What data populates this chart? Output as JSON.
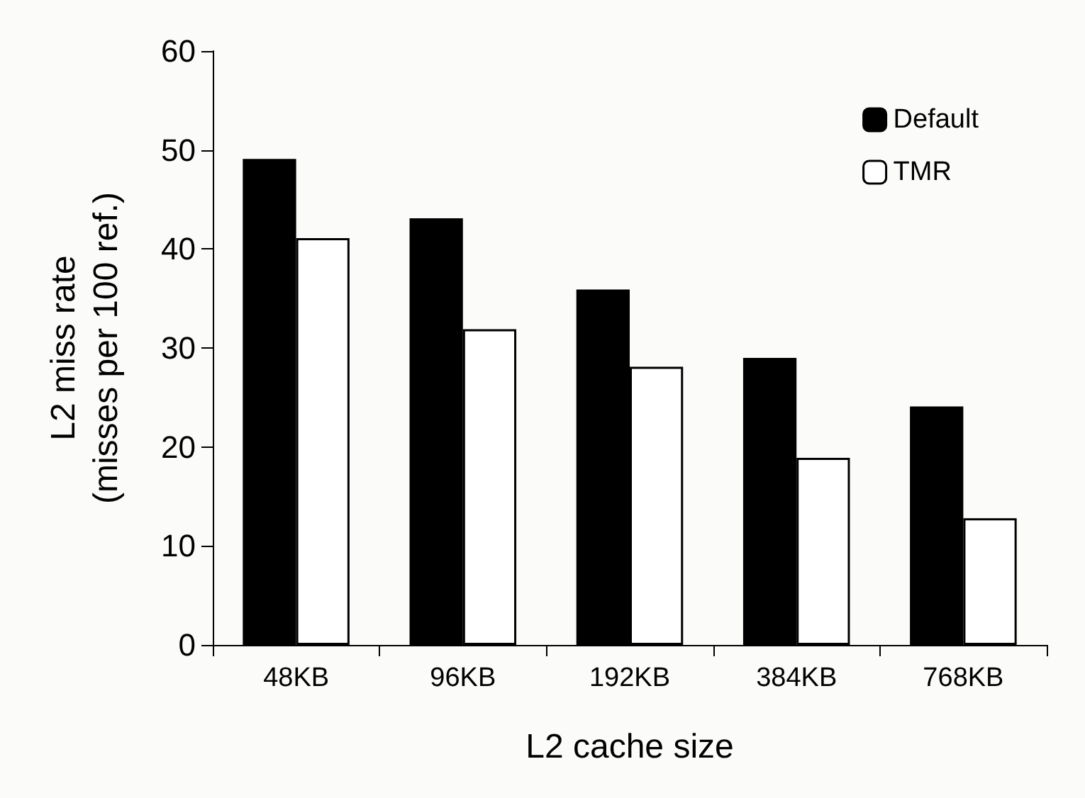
{
  "chart_data": {
    "type": "bar",
    "xlabel": "L2 cache size",
    "ylabel": "L2 miss rate\n(misses per 100 ref.)",
    "categories": [
      "48KB",
      "96KB",
      "192KB",
      "384KB",
      "768KB"
    ],
    "series": [
      {
        "name": "Default",
        "color": "#000000",
        "values": [
          49.1,
          43.1,
          35.9,
          29.0,
          24.1
        ]
      },
      {
        "name": "TMR",
        "color": "#ffffff",
        "values": [
          41.1,
          31.9,
          28.1,
          18.9,
          12.8
        ]
      }
    ],
    "ylim": [
      0,
      60
    ],
    "yticks": [
      0,
      10,
      20,
      30,
      40,
      50,
      60
    ],
    "grid": false,
    "legend": "top right"
  }
}
